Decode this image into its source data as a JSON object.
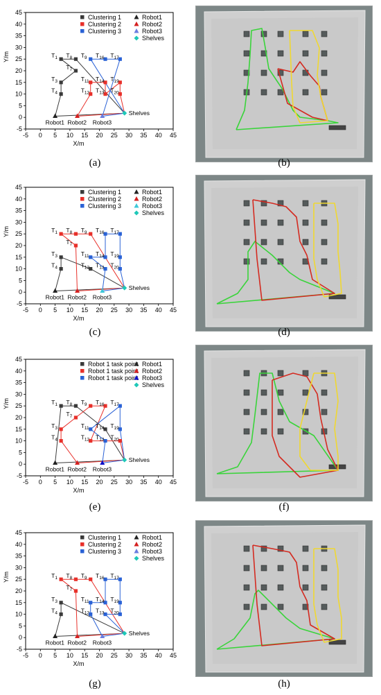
{
  "panel_labels": {
    "a": "(a)",
    "b": "(b)",
    "c": "(c)",
    "d": "(d)",
    "e": "(e)",
    "f": "(f)",
    "g": "(g)",
    "h": "(h)"
  },
  "colors": {
    "cluster1": "#3a3a3a",
    "cluster2": "#e8302a",
    "cluster3": "#2a62d6",
    "robot1": "#222222",
    "robot2": "#d42020",
    "robot3_a": "#6a7de0",
    "robot3_c": "#3ec8d8",
    "robot3_e": "#1010c8",
    "shelves": "#1ec8b8",
    "path_green": "#39d43a",
    "path_red": "#d42a20",
    "path_yellow": "#f0d830"
  },
  "chart_data": [
    {
      "type": "scatter",
      "panel": "(a)",
      "xlabel": "X/m",
      "ylabel": "Y/m",
      "xlim": [
        -5,
        45
      ],
      "ylim": [
        -5,
        45
      ],
      "xticks": [
        -5,
        0,
        5,
        10,
        15,
        20,
        25,
        30,
        35,
        40,
        45
      ],
      "yticks": [
        -5,
        0,
        5,
        10,
        15,
        20,
        25,
        30,
        35,
        40,
        45
      ],
      "legend": [
        "Clustering 1",
        "Clustering 2",
        "Clustering 3",
        "Robot1",
        "Robot2",
        "Robot3",
        "Shelves"
      ],
      "robot3_color_key": "robot3_a",
      "points": [
        {
          "label": "T1",
          "x": 7,
          "y": 25,
          "group": "c1"
        },
        {
          "label": "T8",
          "x": 12,
          "y": 25,
          "group": "c1"
        },
        {
          "label": "T7",
          "x": 12,
          "y": 20,
          "group": "c1"
        },
        {
          "label": "T3",
          "x": 7,
          "y": 15,
          "group": "c1"
        },
        {
          "label": "T4",
          "x": 7,
          "y": 10,
          "group": "c1"
        },
        {
          "label": "T11",
          "x": 17,
          "y": 15,
          "group": "c2"
        },
        {
          "label": "T12",
          "x": 17,
          "y": 10,
          "group": "c2"
        },
        {
          "label": "T14",
          "x": 22,
          "y": 15,
          "group": "c2"
        },
        {
          "label": "T13",
          "x": 22,
          "y": 10,
          "group": "c2"
        },
        {
          "label": "T19",
          "x": 27,
          "y": 15,
          "group": "c2"
        },
        {
          "label": "T20",
          "x": 27,
          "y": 10,
          "group": "c2"
        },
        {
          "label": "T9",
          "x": 17,
          "y": 25,
          "group": "c3"
        },
        {
          "label": "T16",
          "x": 22,
          "y": 25,
          "group": "c3"
        },
        {
          "label": "T17",
          "x": 27,
          "y": 25,
          "group": "c3"
        }
      ],
      "robots": [
        {
          "label": "Robot1",
          "x": 5,
          "y": 0.5
        },
        {
          "label": "Robot2",
          "x": 12.5,
          "y": 0.5
        },
        {
          "label": "Robot3",
          "x": 21,
          "y": 0.5
        }
      ],
      "shelves": {
        "label": "Shelves",
        "x": 28.5,
        "y": 1.8
      },
      "routes": [
        {
          "color_key": "cluster1",
          "points": [
            [
              5,
              0.5
            ],
            [
              7,
              10
            ],
            [
              7,
              15
            ],
            [
              12,
              20
            ],
            [
              7,
              25
            ],
            [
              12,
              25
            ],
            [
              28.5,
              1.8
            ],
            [
              5,
              0.5
            ]
          ]
        },
        {
          "color_key": "cluster2",
          "points": [
            [
              12.5,
              0.5
            ],
            [
              17,
              10
            ],
            [
              17,
              15
            ],
            [
              22,
              15
            ],
            [
              22,
              10
            ],
            [
              27,
              15
            ],
            [
              27,
              10
            ],
            [
              28.5,
              1.8
            ],
            [
              12.5,
              0.5
            ]
          ]
        },
        {
          "color_key": "cluster3",
          "points": [
            [
              21,
              0.5
            ],
            [
              27,
              25
            ],
            [
              22,
              25
            ],
            [
              17,
              25
            ],
            [
              28.5,
              1.8
            ],
            [
              21,
              0.5
            ]
          ]
        }
      ]
    },
    {
      "type": "scatter",
      "panel": "(c)",
      "xlabel": "X/m",
      "ylabel": "Y/m",
      "xlim": [
        -5,
        45
      ],
      "ylim": [
        -5,
        45
      ],
      "xticks": [
        -5,
        0,
        5,
        10,
        15,
        20,
        25,
        30,
        35,
        40,
        45
      ],
      "yticks": [
        -5,
        0,
        5,
        10,
        15,
        20,
        25,
        30,
        35,
        40,
        45
      ],
      "legend": [
        "Clustering 1",
        "Clustering 2",
        "Clustering 3",
        "Robot1",
        "Robot2",
        "Robot3",
        "Shelves"
      ],
      "robot3_color_key": "robot3_c",
      "points": [
        {
          "label": "T3",
          "x": 7,
          "y": 15,
          "group": "c1"
        },
        {
          "label": "T4",
          "x": 7,
          "y": 10,
          "group": "c1"
        },
        {
          "label": "T12",
          "x": 17,
          "y": 10,
          "group": "c1"
        },
        {
          "label": "T1",
          "x": 7,
          "y": 25,
          "group": "c2"
        },
        {
          "label": "T8",
          "x": 12,
          "y": 25,
          "group": "c2"
        },
        {
          "label": "T9",
          "x": 17,
          "y": 25,
          "group": "c2"
        },
        {
          "label": "T7",
          "x": 12,
          "y": 20,
          "group": "c2"
        },
        {
          "label": "T11",
          "x": 17,
          "y": 15,
          "group": "c3"
        },
        {
          "label": "T14",
          "x": 22,
          "y": 15,
          "group": "c3"
        },
        {
          "label": "T13",
          "x": 22,
          "y": 10,
          "group": "c3"
        },
        {
          "label": "T16",
          "x": 22,
          "y": 25,
          "group": "c3"
        },
        {
          "label": "T17",
          "x": 27,
          "y": 25,
          "group": "c3"
        },
        {
          "label": "T19",
          "x": 27,
          "y": 15,
          "group": "c3"
        },
        {
          "label": "T20",
          "x": 27,
          "y": 10,
          "group": "c3"
        }
      ],
      "robots": [
        {
          "label": "Robot1",
          "x": 5,
          "y": 0.5
        },
        {
          "label": "Robot2",
          "x": 12.5,
          "y": 0.5
        },
        {
          "label": "Robot3",
          "x": 21,
          "y": 0.5
        }
      ],
      "shelves": {
        "label": "Shelves",
        "x": 28.5,
        "y": 1.8
      },
      "routes": [
        {
          "color_key": "cluster1",
          "points": [
            [
              5,
              0.5
            ],
            [
              7,
              10
            ],
            [
              7,
              15
            ],
            [
              17,
              10
            ],
            [
              28.5,
              1.8
            ],
            [
              5,
              0.5
            ]
          ]
        },
        {
          "color_key": "cluster2",
          "points": [
            [
              12.5,
              0.5
            ],
            [
              12,
              20
            ],
            [
              7,
              25
            ],
            [
              12,
              25
            ],
            [
              17,
              25
            ],
            [
              28.5,
              1.8
            ],
            [
              12.5,
              0.5
            ]
          ]
        },
        {
          "color_key": "cluster3",
          "points": [
            [
              21,
              0.5
            ],
            [
              22,
              10
            ],
            [
              17,
              15
            ],
            [
              22,
              15
            ],
            [
              22,
              25
            ],
            [
              27,
              25
            ],
            [
              27,
              15
            ],
            [
              27,
              10
            ],
            [
              28.5,
              1.8
            ],
            [
              21,
              0.5
            ]
          ]
        }
      ]
    },
    {
      "type": "scatter",
      "panel": "(e)",
      "xlabel": "X/m",
      "ylabel": "Y/m",
      "xlim": [
        -5,
        45
      ],
      "ylim": [
        -5,
        45
      ],
      "xticks": [
        -5,
        0,
        5,
        10,
        15,
        20,
        25,
        30,
        35,
        40,
        45
      ],
      "yticks": [
        -5,
        0,
        5,
        10,
        15,
        20,
        25,
        30,
        35,
        40,
        45
      ],
      "legend": [
        "Robot 1 task point",
        "Robot 1 task point",
        "Robot 1 task point",
        "Robot1",
        "Robot2",
        "Robot3",
        "Shelves"
      ],
      "robot3_color_key": "robot3_e",
      "points": [
        {
          "label": "T1",
          "x": 7,
          "y": 25,
          "group": "c1"
        },
        {
          "label": "T8",
          "x": 12,
          "y": 25,
          "group": "c1"
        },
        {
          "label": "T14",
          "x": 22,
          "y": 15,
          "group": "c1"
        },
        {
          "label": "T9",
          "x": 17,
          "y": 25,
          "group": "c2"
        },
        {
          "label": "T16",
          "x": 22,
          "y": 25,
          "group": "c2"
        },
        {
          "label": "T7",
          "x": 12,
          "y": 20,
          "group": "c2"
        },
        {
          "label": "T3",
          "x": 7,
          "y": 15,
          "group": "c2"
        },
        {
          "label": "T4",
          "x": 7,
          "y": 10,
          "group": "c2"
        },
        {
          "label": "T12",
          "x": 17,
          "y": 10,
          "group": "c2"
        },
        {
          "label": "T20",
          "x": 27,
          "y": 10,
          "group": "c2"
        },
        {
          "label": "T11",
          "x": 17,
          "y": 15,
          "group": "c3"
        },
        {
          "label": "T17",
          "x": 27,
          "y": 25,
          "group": "c3"
        },
        {
          "label": "T19",
          "x": 27,
          "y": 15,
          "group": "c3"
        },
        {
          "label": "T13",
          "x": 22,
          "y": 10,
          "group": "c3"
        }
      ],
      "robots": [
        {
          "label": "Robot1",
          "x": 5,
          "y": 0.5
        },
        {
          "label": "Robot2",
          "x": 12.5,
          "y": 0.5
        },
        {
          "label": "Robot3",
          "x": 21,
          "y": 0.5
        }
      ],
      "shelves": {
        "label": "Shelves",
        "x": 28.5,
        "y": 1.8
      },
      "routes": [
        {
          "color_key": "cluster1",
          "points": [
            [
              5,
              0.5
            ],
            [
              7,
              25
            ],
            [
              12,
              25
            ],
            [
              22,
              15
            ],
            [
              28.5,
              1.8
            ],
            [
              5,
              0.5
            ]
          ]
        },
        {
          "color_key": "cluster2",
          "points": [
            [
              12.5,
              0.5
            ],
            [
              7,
              10
            ],
            [
              7,
              15
            ],
            [
              12,
              20
            ],
            [
              17,
              25
            ],
            [
              22,
              25
            ],
            [
              17,
              10
            ],
            [
              27,
              10
            ],
            [
              28.5,
              1.8
            ],
            [
              12.5,
              0.5
            ]
          ]
        },
        {
          "color_key": "cluster3",
          "points": [
            [
              21,
              0.5
            ],
            [
              22,
              10
            ],
            [
              17,
              15
            ],
            [
              27,
              25
            ],
            [
              27,
              15
            ],
            [
              28.5,
              1.8
            ],
            [
              21,
              0.5
            ]
          ]
        }
      ]
    },
    {
      "type": "scatter",
      "panel": "(g)",
      "xlabel": "X/m",
      "ylabel": "Y/m",
      "xlim": [
        -5,
        45
      ],
      "ylim": [
        -5,
        45
      ],
      "xticks": [
        -5,
        0,
        5,
        10,
        15,
        20,
        25,
        30,
        35,
        40,
        45
      ],
      "yticks": [
        -5,
        0,
        5,
        10,
        15,
        20,
        25,
        30,
        35,
        40,
        45
      ],
      "legend": [
        "Clustering 1",
        "Clustering 2",
        "Clustering 3",
        "Robot1",
        "Robot2",
        "Robot3",
        "Shelves"
      ],
      "robot3_color_key": "robot3_a",
      "points": [
        {
          "label": "T3",
          "x": 7,
          "y": 15,
          "group": "c1"
        },
        {
          "label": "T4",
          "x": 7,
          "y": 10,
          "group": "c1"
        },
        {
          "label": "T1",
          "x": 7,
          "y": 25,
          "group": "c2"
        },
        {
          "label": "T8",
          "x": 12,
          "y": 25,
          "group": "c2"
        },
        {
          "label": "T9",
          "x": 17,
          "y": 25,
          "group": "c2"
        },
        {
          "label": "T7",
          "x": 12,
          "y": 20,
          "group": "c2"
        },
        {
          "label": "T11",
          "x": 17,
          "y": 15,
          "group": "c3"
        },
        {
          "label": "T14",
          "x": 22,
          "y": 15,
          "group": "c3"
        },
        {
          "label": "T12",
          "x": 17,
          "y": 10,
          "group": "c3"
        },
        {
          "label": "T13",
          "x": 22,
          "y": 10,
          "group": "c3"
        },
        {
          "label": "T16",
          "x": 22,
          "y": 25,
          "group": "c3"
        },
        {
          "label": "T17",
          "x": 27,
          "y": 25,
          "group": "c3"
        },
        {
          "label": "T19",
          "x": 27,
          "y": 15,
          "group": "c3"
        },
        {
          "label": "T20",
          "x": 27,
          "y": 10,
          "group": "c3"
        }
      ],
      "robots": [
        {
          "label": "Robot1",
          "x": 5,
          "y": 0.5
        },
        {
          "label": "Robot2",
          "x": 12.5,
          "y": 0.5
        },
        {
          "label": "Robot3",
          "x": 21,
          "y": 0.5
        }
      ],
      "shelves": {
        "label": "Shelves",
        "x": 28.5,
        "y": 1.8
      },
      "routes": [
        {
          "color_key": "cluster1",
          "points": [
            [
              5,
              0.5
            ],
            [
              7,
              10
            ],
            [
              7,
              15
            ],
            [
              28.5,
              1.8
            ],
            [
              5,
              0.5
            ]
          ]
        },
        {
          "color_key": "cluster2",
          "points": [
            [
              12.5,
              0.5
            ],
            [
              12,
              20
            ],
            [
              7,
              25
            ],
            [
              12,
              25
            ],
            [
              17,
              25
            ],
            [
              28.5,
              1.8
            ],
            [
              12.5,
              0.5
            ]
          ]
        },
        {
          "color_key": "cluster3",
          "points": [
            [
              21,
              0.5
            ],
            [
              17,
              10
            ],
            [
              17,
              15
            ],
            [
              22,
              15
            ],
            [
              22,
              25
            ],
            [
              27,
              25
            ],
            [
              27,
              15
            ],
            [
              27,
              10
            ],
            [
              22,
              10
            ],
            [
              28.5,
              1.8
            ],
            [
              21,
              0.5
            ]
          ]
        }
      ]
    }
  ]
}
